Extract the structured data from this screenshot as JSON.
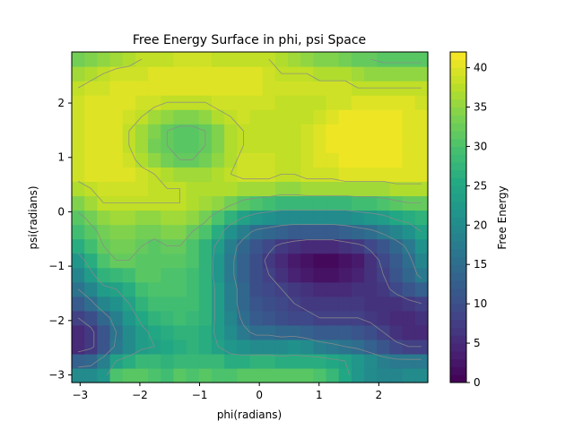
{
  "chart_data": {
    "type": "heatmap",
    "title": "Free Energy Surface in phi, psi Space",
    "xlabel": "phi(radians)",
    "ylabel": "psi(radians)",
    "colorbar_label": "Free Energy",
    "xlim": [
      -3.14,
      2.82
    ],
    "ylim": [
      -3.14,
      2.94
    ],
    "x_ticks": [
      -3,
      -2,
      -1,
      0,
      1,
      2
    ],
    "y_ticks": [
      -3,
      -2,
      -1,
      0,
      1,
      2
    ],
    "colorbar_range": [
      0,
      42
    ],
    "colorbar_ticks": [
      0,
      5,
      10,
      15,
      20,
      25,
      30,
      35,
      40
    ],
    "colormap": "viridis",
    "grid": false,
    "contour_color": "#8a8a8a",
    "values_note_rows_from_psi_bottom": true,
    "values": [
      [
        20,
        20,
        22,
        30,
        31,
        31,
        30,
        29,
        31,
        30,
        31,
        30,
        30,
        31,
        31,
        31,
        31,
        31,
        31,
        30,
        28,
        25,
        22,
        20,
        19,
        19,
        20,
        20
      ],
      [
        13,
        14,
        18,
        24,
        26,
        28,
        28,
        27,
        28,
        28,
        28,
        28,
        26,
        26,
        27,
        27,
        26,
        26,
        26,
        26,
        25,
        24,
        22,
        20,
        18,
        17,
        17,
        17
      ],
      [
        5,
        7,
        11,
        17,
        20,
        23,
        24,
        25,
        26,
        27,
        26,
        24,
        22,
        21,
        20,
        20,
        20,
        21,
        20,
        18,
        17,
        16,
        15,
        13,
        11,
        9,
        8,
        8
      ],
      [
        5,
        7,
        11,
        16,
        20,
        23,
        25,
        26,
        27,
        27,
        26,
        23,
        20,
        17,
        15,
        15,
        14,
        14,
        13,
        12,
        12,
        12,
        11,
        10,
        8,
        6,
        5,
        5
      ],
      [
        8,
        10,
        14,
        18,
        22,
        25,
        27,
        28,
        29,
        28,
        27,
        23,
        19,
        15,
        12,
        11,
        10,
        9,
        9,
        8,
        8,
        8,
        8,
        7,
        6,
        5,
        5,
        6
      ],
      [
        12,
        15,
        19,
        21,
        24,
        27,
        29,
        29,
        29,
        29,
        27,
        23,
        18,
        14,
        11,
        10,
        9,
        8,
        7,
        7,
        7,
        7,
        7,
        6,
        6,
        6,
        7,
        8
      ],
      [
        16,
        19,
        23,
        24,
        26,
        29,
        30,
        30,
        30,
        29,
        27,
        23,
        18,
        14,
        10,
        9,
        8,
        7,
        6,
        5,
        5,
        5,
        6,
        6,
        7,
        9,
        11,
        13
      ],
      [
        19,
        23,
        27,
        28,
        29,
        31,
        31,
        30,
        30,
        29,
        27,
        22,
        17,
        13,
        10,
        8,
        6,
        4,
        3,
        2,
        2,
        3,
        4,
        6,
        8,
        11,
        14,
        17
      ],
      [
        22,
        26,
        30,
        32,
        32,
        31,
        31,
        31,
        31,
        30,
        27,
        22,
        17,
        13,
        10,
        7,
        5,
        3,
        2,
        1,
        1,
        2,
        3,
        6,
        9,
        12,
        15,
        19
      ],
      [
        26,
        29,
        32,
        33,
        33,
        32,
        31,
        32,
        32,
        30,
        27,
        23,
        18,
        14,
        11,
        9,
        7,
        6,
        5,
        5,
        5,
        6,
        7,
        9,
        11,
        14,
        17,
        21
      ],
      [
        29,
        31,
        33,
        34,
        34,
        33,
        33,
        34,
        34,
        32,
        30,
        26,
        21,
        18,
        15,
        14,
        13,
        12,
        12,
        12,
        12,
        13,
        14,
        15,
        17,
        19,
        21,
        24
      ],
      [
        31,
        33,
        35,
        36,
        36,
        35,
        35,
        36,
        36,
        35,
        33,
        30,
        27,
        24,
        22,
        21,
        20,
        20,
        20,
        20,
        20,
        20,
        21,
        22,
        23,
        25,
        26,
        27
      ],
      [
        34,
        36,
        38,
        38,
        38,
        38,
        38,
        38,
        38,
        37,
        36,
        35,
        33,
        31,
        30,
        29,
        28,
        28,
        28,
        28,
        28,
        28,
        29,
        29,
        30,
        31,
        32,
        32
      ],
      [
        37,
        38,
        39,
        39,
        39,
        39,
        38,
        38,
        38,
        37,
        37,
        37,
        37,
        36,
        36,
        36,
        35,
        35,
        36,
        36,
        36,
        36,
        36,
        36,
        36,
        37,
        37,
        37
      ],
      [
        39,
        40,
        40,
        40,
        40,
        39,
        38,
        37,
        36,
        36,
        36,
        37,
        38,
        39,
        39,
        39,
        38,
        38,
        39,
        39,
        39,
        40,
        40,
        40,
        40,
        40,
        40,
        40
      ],
      [
        39,
        40,
        40,
        40,
        39,
        37,
        35,
        33,
        32,
        32,
        33,
        35,
        37,
        39,
        39,
        39,
        38,
        38,
        39,
        40,
        40,
        41,
        41,
        41,
        41,
        41,
        40,
        40
      ],
      [
        39,
        40,
        40,
        40,
        38,
        36,
        33,
        32,
        31,
        31,
        32,
        34,
        37,
        38,
        38,
        38,
        38,
        38,
        39,
        40,
        41,
        41,
        41,
        41,
        41,
        41,
        40,
        40
      ],
      [
        39,
        40,
        40,
        40,
        38,
        36,
        34,
        32,
        31,
        31,
        32,
        34,
        37,
        38,
        38,
        38,
        38,
        38,
        39,
        40,
        41,
        41,
        41,
        41,
        41,
        41,
        40,
        40
      ],
      [
        39,
        40,
        40,
        40,
        39,
        38,
        36,
        35,
        34,
        34,
        35,
        37,
        38,
        39,
        38,
        38,
        38,
        38,
        38,
        39,
        40,
        41,
        41,
        41,
        41,
        41,
        40,
        40
      ],
      [
        39,
        40,
        40,
        40,
        40,
        39,
        39,
        38,
        38,
        38,
        38,
        39,
        39,
        39,
        39,
        39,
        38,
        38,
        38,
        38,
        39,
        39,
        40,
        40,
        40,
        40,
        40,
        39
      ],
      [
        38,
        39,
        39,
        40,
        40,
        40,
        40,
        40,
        40,
        40,
        40,
        40,
        40,
        40,
        40,
        39,
        39,
        39,
        39,
        39,
        39,
        39,
        38,
        38,
        38,
        38,
        38,
        38
      ],
      [
        36,
        37,
        38,
        39,
        39,
        39,
        40,
        40,
        40,
        40,
        40,
        40,
        40,
        40,
        40,
        39,
        38,
        38,
        38,
        37,
        37,
        37,
        36,
        35,
        35,
        35,
        35,
        35
      ],
      [
        33,
        34,
        35,
        36,
        37,
        38,
        38,
        38,
        39,
        39,
        39,
        38,
        38,
        38,
        38,
        38,
        37,
        36,
        35,
        34,
        34,
        33,
        32,
        32,
        31,
        31,
        31,
        31
      ]
    ]
  }
}
